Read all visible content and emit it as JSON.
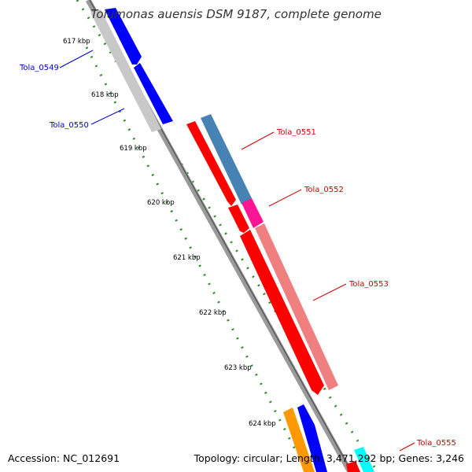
{
  "title": "Tolumonas auensis DSM 9187, complete genome",
  "footer": {
    "accession": "Accession: NC_012691",
    "topology": "Topology: circular; Length: 3,471,292 bp; Genes: 3,246"
  },
  "colors": {
    "backbone": "#8a8a8a",
    "tick_dots": "#2e8b2e",
    "forward_label": "#0000cc",
    "reverse_label": "#cc0000"
  },
  "ticks": [
    {
      "label": "617 kbp",
      "kbp": 617
    },
    {
      "label": "618 kbp",
      "kbp": 618
    },
    {
      "label": "619 kbp",
      "kbp": 619
    },
    {
      "label": "620 kbp",
      "kbp": 620
    },
    {
      "label": "621 kbp",
      "kbp": 621
    },
    {
      "label": "622 kbp",
      "kbp": 622
    },
    {
      "label": "623 kbp",
      "kbp": 623
    },
    {
      "label": "624 kbp",
      "kbp": 624
    }
  ],
  "genes": [
    {
      "name": "Tola_0549",
      "strand": "forward",
      "color": "#0000ff",
      "shadow": "#c0c0c0"
    },
    {
      "name": "Tola_0550",
      "strand": "forward",
      "color": "#0000ff",
      "shadow": "#c0c0c0"
    },
    {
      "name": "Tola_0551",
      "strand": "reverse",
      "color": "#ff0000",
      "shadow": "#4682b4"
    },
    {
      "name": "Tola_0552",
      "strand": "reverse",
      "color": "#ff0000",
      "shadow": "#ff1493"
    },
    {
      "name": "Tola_0553",
      "strand": "reverse",
      "color": "#ff0000",
      "shadow": "#f08080"
    },
    {
      "name": "Tola_0555",
      "strand": "reverse",
      "color": "#ff0000",
      "shadow": "#00ffff"
    }
  ]
}
